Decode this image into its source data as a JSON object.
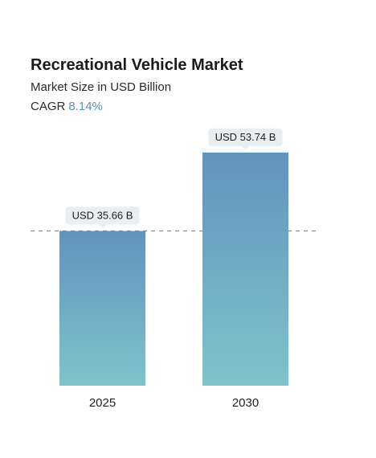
{
  "header": {
    "title": "Recreational Vehicle Market",
    "subtitle": "Market Size in USD Billion",
    "cagr_label": "CAGR",
    "cagr_value": "8.14%"
  },
  "colors": {
    "bar_top": "#6293bd",
    "bar_bottom": "#7fc3cb",
    "label_bg": "#e9eef0",
    "reference_line": "#5b7e9e",
    "cagr_accent": "#5b8fb5"
  },
  "chart_data": {
    "type": "bar",
    "title": "Recreational Vehicle Market",
    "subtitle": "Market Size in USD Billion",
    "xlabel": "",
    "ylabel": "",
    "categories": [
      "2025",
      "2030"
    ],
    "values": [
      35.66,
      53.74
    ],
    "data_labels": [
      "USD 35.66 B",
      "USD 53.74 B"
    ],
    "grid": false,
    "legend": "none",
    "reference_line_value": 35.66
  }
}
